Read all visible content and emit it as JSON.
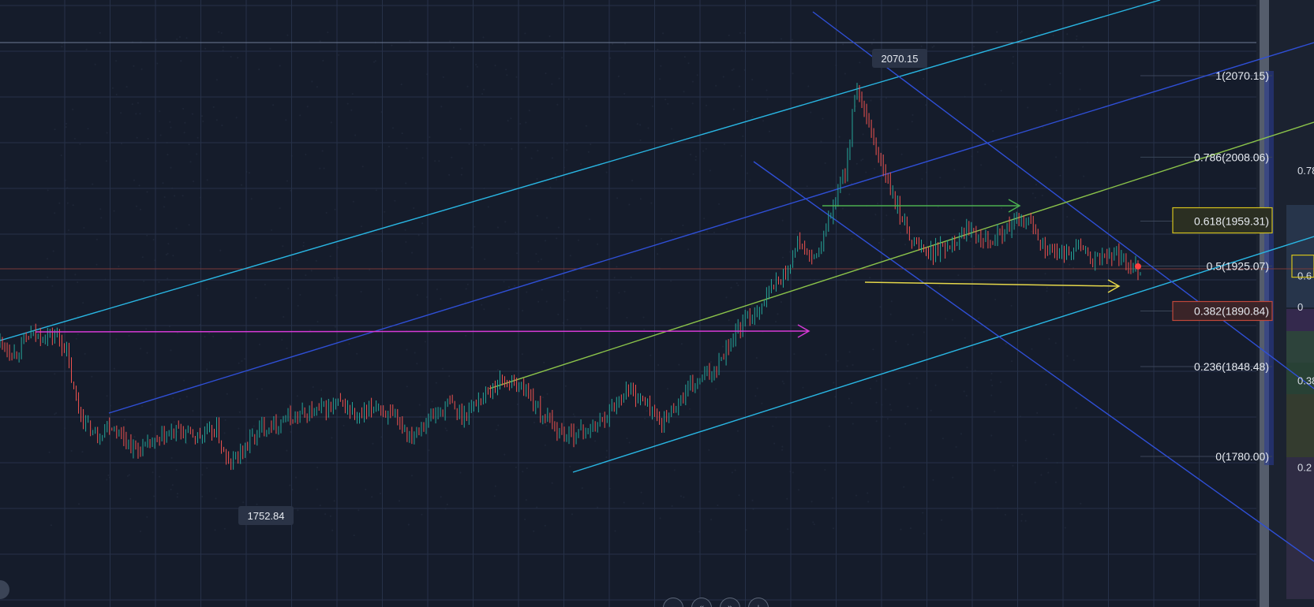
{
  "colors": {
    "background": "#151c2b",
    "grid": "#263148",
    "candle_up": "#26a69a",
    "candle_down": "#ef5350",
    "channel_cyan": "#29b6e3",
    "channel_blue": "#2f4fd6",
    "trend_green": "#8bc34a",
    "arrow_magenta": "#d63ad6",
    "arrow_green": "#4caf50",
    "arrow_yellow": "#e6d84a",
    "current_price_line": "#7a3a3a",
    "fib_label_highlight_yellow": "#d4c21c",
    "fib_label_highlight_red": "#c0483a"
  },
  "toolbar": {
    "buttons": [
      {
        "icon": "zoom-out-icon",
        "glyph": "−"
      },
      {
        "icon": "scroll-back-icon",
        "glyph": "«"
      },
      {
        "icon": "scroll-forward-icon",
        "glyph": "»"
      },
      {
        "icon": "zoom-in-icon",
        "glyph": "+"
      }
    ]
  },
  "chart_data": {
    "type": "candlestick",
    "title": "",
    "xlabel": "",
    "ylabel": "",
    "ylim": [
      1700,
      2110
    ],
    "grid": true,
    "legend": "none",
    "price_labels": {
      "high": "2070.15",
      "low": "1752.84"
    },
    "fibonacci_levels": [
      {
        "label": "1(2070.15)",
        "ratio": 1,
        "price": 2070.15,
        "highlight": "none"
      },
      {
        "label": "0.786(2008.06)",
        "ratio": 0.786,
        "price": 2008.06,
        "highlight": "none"
      },
      {
        "label": "0.618(1959.31)",
        "ratio": 0.618,
        "price": 1959.31,
        "highlight": "yellow"
      },
      {
        "label": "0.5(1925.07)",
        "ratio": 0.5,
        "price": 1925.07,
        "highlight": "none"
      },
      {
        "label": "0.382(1890.84)",
        "ratio": 0.382,
        "price": 1890.84,
        "highlight": "red"
      },
      {
        "label": "0.236(1848.48)",
        "ratio": 0.236,
        "price": 1848.48,
        "highlight": "none"
      },
      {
        "label": "0(1780.00)",
        "ratio": 0,
        "price": 1780.0,
        "highlight": "none"
      }
    ],
    "partial_fib_labels": [
      {
        "label": "0.78",
        "price": 1998
      },
      {
        "label": "0.6",
        "price": 1918
      },
      {
        "label": "0",
        "price": 1894
      },
      {
        "label": "0.38",
        "price": 1838
      },
      {
        "label": "0.2",
        "price": 1772
      }
    ],
    "current_price": 1923,
    "price_path": [
      [
        0,
        1868
      ],
      [
        0.012,
        1858
      ],
      [
        0.026,
        1872
      ],
      [
        0.05,
        1872
      ],
      [
        0.058,
        1860
      ],
      [
        0.066,
        1823
      ],
      [
        0.075,
        1805
      ],
      [
        0.085,
        1795
      ],
      [
        0.095,
        1805
      ],
      [
        0.105,
        1798
      ],
      [
        0.12,
        1784
      ],
      [
        0.14,
        1792
      ],
      [
        0.155,
        1800
      ],
      [
        0.175,
        1795
      ],
      [
        0.19,
        1800
      ],
      [
        0.2,
        1772
      ],
      [
        0.215,
        1788
      ],
      [
        0.23,
        1802
      ],
      [
        0.25,
        1808
      ],
      [
        0.28,
        1815
      ],
      [
        0.3,
        1820
      ],
      [
        0.315,
        1808
      ],
      [
        0.33,
        1820
      ],
      [
        0.345,
        1808
      ],
      [
        0.36,
        1797
      ],
      [
        0.375,
        1808
      ],
      [
        0.395,
        1820
      ],
      [
        0.405,
        1810
      ],
      [
        0.425,
        1828
      ],
      [
        0.44,
        1838
      ],
      [
        0.46,
        1832
      ],
      [
        0.475,
        1812
      ],
      [
        0.495,
        1796
      ],
      [
        0.52,
        1802
      ],
      [
        0.535,
        1815
      ],
      [
        0.55,
        1832
      ],
      [
        0.565,
        1822
      ],
      [
        0.58,
        1805
      ],
      [
        0.605,
        1832
      ],
      [
        0.625,
        1845
      ],
      [
        0.645,
        1875
      ],
      [
        0.665,
        1893
      ],
      [
        0.68,
        1912
      ],
      [
        0.69,
        1920
      ],
      [
        0.7,
        1945
      ],
      [
        0.712,
        1928
      ],
      [
        0.72,
        1940
      ],
      [
        0.732,
        1975
      ],
      [
        0.742,
        2000
      ],
      [
        0.75,
        2060
      ],
      [
        0.76,
        2035
      ],
      [
        0.772,
        2005
      ],
      [
        0.785,
        1972
      ],
      [
        0.8,
        1945
      ],
      [
        0.815,
        1935
      ],
      [
        0.83,
        1940
      ],
      [
        0.85,
        1955
      ],
      [
        0.87,
        1945
      ],
      [
        0.89,
        1958
      ],
      [
        0.905,
        1958
      ],
      [
        0.915,
        1940
      ],
      [
        0.93,
        1932
      ],
      [
        0.945,
        1942
      ],
      [
        0.96,
        1928
      ],
      [
        0.975,
        1935
      ],
      [
        0.99,
        1928
      ],
      [
        1,
        1923
      ]
    ]
  }
}
